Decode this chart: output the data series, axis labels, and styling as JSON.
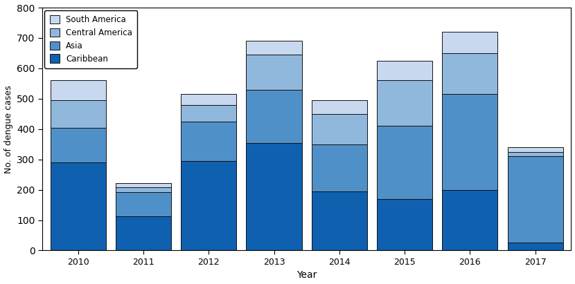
{
  "years": [
    2010,
    2011,
    2012,
    2013,
    2014,
    2015,
    2016,
    2017
  ],
  "caribbean": [
    290,
    113,
    295,
    355,
    195,
    170,
    200,
    25
  ],
  "asia": [
    115,
    80,
    130,
    175,
    155,
    240,
    315,
    285
  ],
  "central_america": [
    90,
    15,
    55,
    115,
    100,
    150,
    135,
    15
  ],
  "south_america": [
    65,
    15,
    35,
    45,
    45,
    65,
    70,
    15
  ],
  "color_caribbean": "#1060B0",
  "color_asia": "#5090C8",
  "color_central_america": "#90B8DC",
  "color_south_america": "#C8D8EE",
  "edgecolor": "#111111",
  "ylabel": "No. of dengue cases",
  "xlabel": "Year",
  "ylim": [
    0,
    800
  ],
  "yticks": [
    0,
    100,
    200,
    300,
    400,
    500,
    600,
    700,
    800
  ],
  "bar_width": 0.85,
  "xlim": [
    2009.45,
    2017.55
  ],
  "xtick_positions": [
    2009.5,
    2010.5,
    2011.5,
    2012.5,
    2013.5,
    2014.5,
    2015.5,
    2016.5,
    2017.5
  ],
  "xtick_labels": [
    "",
    "2010",
    "2011",
    "2012",
    "2013",
    "2014",
    "2015",
    "2016",
    "2017"
  ],
  "legend_labels": [
    "South America",
    "Central America",
    "Asia",
    "Caribbean"
  ],
  "legend_colors": [
    "#C8D8EE",
    "#90B8DC",
    "#5090C8",
    "#1060B0"
  ]
}
